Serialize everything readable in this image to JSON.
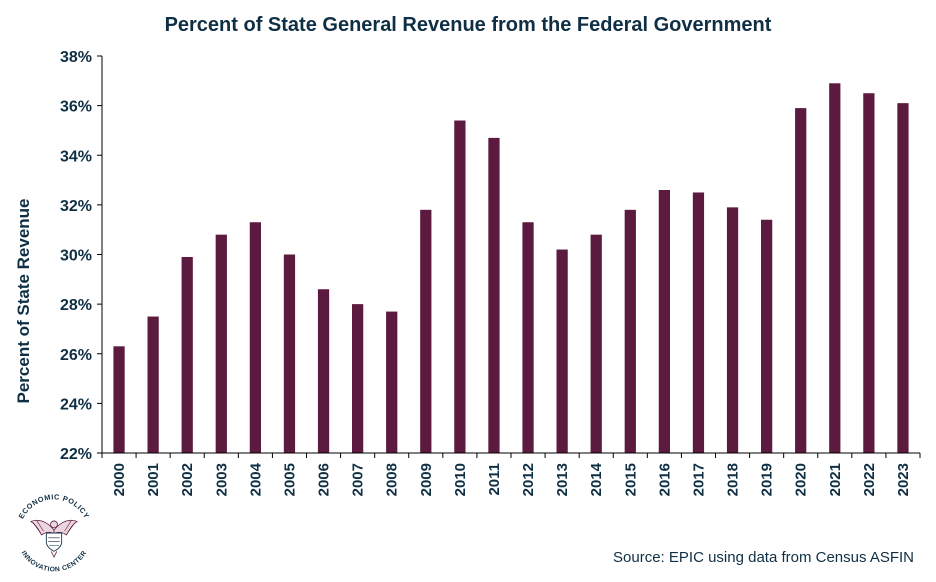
{
  "chart_data": {
    "type": "bar",
    "title": "Percent of State General Revenue from the Federal Government",
    "xlabel": "",
    "ylabel": "Percent of State Revenue",
    "categories": [
      "2000",
      "2001",
      "2002",
      "2003",
      "2004",
      "2005",
      "2006",
      "2007",
      "2008",
      "2009",
      "2010",
      "2011",
      "2012",
      "2013",
      "2014",
      "2015",
      "2016",
      "2017",
      "2018",
      "2019",
      "2020",
      "2021",
      "2022",
      "2023"
    ],
    "values": [
      26.3,
      27.5,
      29.9,
      30.8,
      31.3,
      30.0,
      28.6,
      28.0,
      27.7,
      31.8,
      35.4,
      34.7,
      31.3,
      30.2,
      30.8,
      31.8,
      32.6,
      32.5,
      31.9,
      31.4,
      35.9,
      36.9,
      36.5,
      36.1
    ],
    "ylim": [
      22,
      38
    ],
    "yticks": [
      22,
      24,
      26,
      28,
      30,
      32,
      34,
      36,
      38
    ],
    "ytick_labels": [
      "22%",
      "24%",
      "26%",
      "28%",
      "30%",
      "32%",
      "34%",
      "36%",
      "38%"
    ],
    "bar_color": "#5c1a3f",
    "grid": false
  },
  "source": "Source: EPIC using data from Census ASFIN",
  "logo": {
    "top_text": "ECONOMIC POLICY",
    "bottom_text": "INNOVATION CENTER"
  },
  "colors": {
    "text": "#0f2f44",
    "bar": "#5c1a3f",
    "axis": "#000000"
  }
}
